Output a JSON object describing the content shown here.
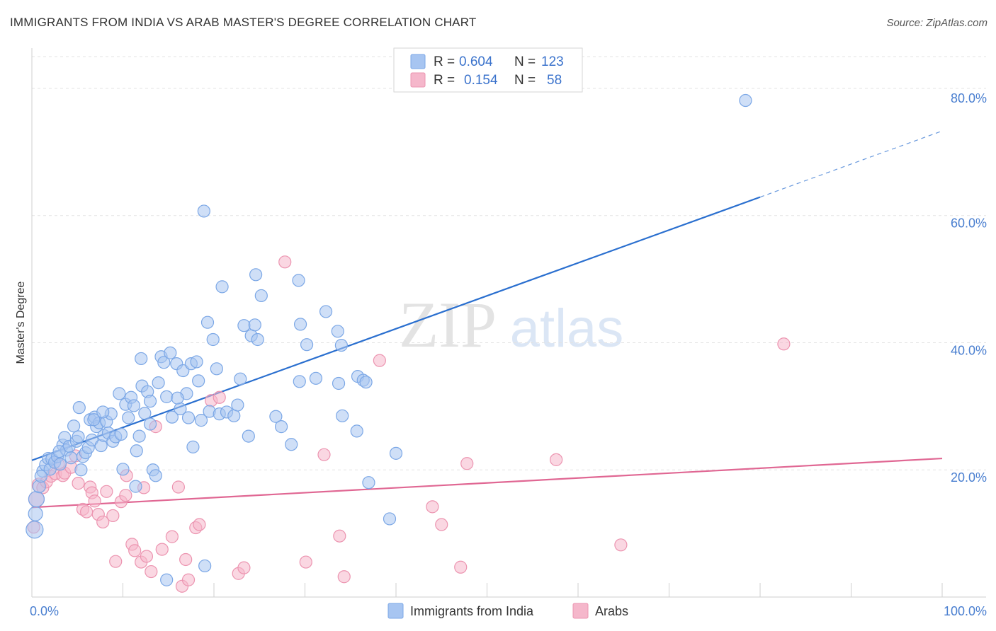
{
  "title": "IMMIGRANTS FROM INDIA VS ARAB MASTER'S DEGREE CORRELATION CHART",
  "source": "Source: ZipAtlas.com",
  "watermark": {
    "zip": "ZIP",
    "atlas": "atlas"
  },
  "chart_data": {
    "type": "scatter",
    "title": "IMMIGRANTS FROM INDIA VS ARAB MASTER'S DEGREE CORRELATION CHART",
    "xlabel": "",
    "ylabel": "Master's Degree",
    "xlim": [
      0,
      100
    ],
    "ylim": [
      0,
      85
    ],
    "grid": true,
    "y_ticks": [
      {
        "value": 80,
        "label": "80.0%"
      },
      {
        "value": 60,
        "label": "60.0%"
      },
      {
        "value": 40,
        "label": "40.0%"
      },
      {
        "value": 20,
        "label": "20.0%"
      }
    ],
    "x_ticks": [
      {
        "value": 0,
        "label": "0.0%"
      },
      {
        "value": 100,
        "label": "100.0%"
      }
    ],
    "x_minor_ticks": [
      10,
      20,
      30,
      40,
      50,
      60,
      70,
      80,
      90,
      100
    ],
    "legend": {
      "placement": "top-center",
      "entries": [
        {
          "r_label": "R =",
          "r": "0.604",
          "n_label": "N =",
          "n": "123",
          "color": "#a7c5f1"
        },
        {
          "r_label": "R =",
          "r": "0.154",
          "n_label": "N =",
          "n": "58",
          "color": "#f5b7cb"
        }
      ]
    },
    "series": [
      {
        "name": "Immigrants from India",
        "color": "#7ba7e6",
        "fill": "#a7c5f1",
        "line_color": "#2a6fcf",
        "trend": {
          "x0": 0,
          "y0": 21.5,
          "x1": 80,
          "y1": 62.9,
          "x_dash_end": 100,
          "y_dash_end": 73.3
        },
        "points": [
          [
            0.3,
            10.6
          ],
          [
            0.4,
            13.1
          ],
          [
            0.5,
            15.4
          ],
          [
            0.8,
            17.4
          ],
          [
            1.2,
            19.8
          ],
          [
            1.5,
            20.8
          ],
          [
            1.8,
            21.8
          ],
          [
            2.0,
            20.1
          ],
          [
            2.2,
            21.7
          ],
          [
            2.5,
            21.2
          ],
          [
            2.8,
            22.1
          ],
          [
            3.1,
            20.9
          ],
          [
            3.4,
            23.9
          ],
          [
            3.6,
            25.1
          ],
          [
            3.8,
            23.1
          ],
          [
            4.1,
            23.7
          ],
          [
            4.3,
            21.9
          ],
          [
            4.6,
            26.9
          ],
          [
            4.9,
            24.5
          ],
          [
            5.1,
            25.2
          ],
          [
            5.4,
            20.0
          ],
          [
            5.6,
            22.1
          ],
          [
            5.9,
            22.7
          ],
          [
            6.2,
            23.5
          ],
          [
            6.4,
            27.9
          ],
          [
            6.6,
            24.7
          ],
          [
            6.9,
            28.3
          ],
          [
            7.1,
            26.8
          ],
          [
            7.4,
            27.4
          ],
          [
            7.6,
            23.8
          ],
          [
            7.9,
            25.4
          ],
          [
            8.2,
            27.6
          ],
          [
            8.4,
            25.8
          ],
          [
            8.7,
            28.8
          ],
          [
            8.9,
            24.5
          ],
          [
            9.2,
            25.2
          ],
          [
            9.6,
            32.0
          ],
          [
            10.0,
            20.1
          ],
          [
            10.3,
            30.3
          ],
          [
            10.6,
            28.2
          ],
          [
            10.9,
            31.4
          ],
          [
            11.2,
            30.1
          ],
          [
            11.5,
            23.0
          ],
          [
            11.8,
            25.3
          ],
          [
            12.1,
            33.2
          ],
          [
            12.4,
            28.9
          ],
          [
            12.7,
            32.3
          ],
          [
            13.0,
            27.2
          ],
          [
            13.3,
            20.0
          ],
          [
            13.6,
            19.1
          ],
          [
            13.9,
            33.7
          ],
          [
            14.2,
            37.8
          ],
          [
            14.5,
            36.9
          ],
          [
            14.8,
            31.5
          ],
          [
            15.2,
            38.4
          ],
          [
            15.4,
            28.3
          ],
          [
            15.9,
            36.7
          ],
          [
            16.3,
            29.6
          ],
          [
            16.6,
            35.6
          ],
          [
            17.0,
            32.0
          ],
          [
            17.2,
            28.2
          ],
          [
            17.5,
            36.7
          ],
          [
            17.7,
            23.6
          ],
          [
            18.1,
            37.0
          ],
          [
            18.3,
            34.0
          ],
          [
            18.6,
            27.8
          ],
          [
            18.9,
            60.7
          ],
          [
            19.3,
            43.2
          ],
          [
            19.5,
            29.2
          ],
          [
            19.9,
            40.5
          ],
          [
            20.3,
            35.9
          ],
          [
            20.6,
            28.8
          ],
          [
            20.9,
            48.8
          ],
          [
            21.4,
            29.1
          ],
          [
            22.2,
            28.5
          ],
          [
            22.6,
            30.2
          ],
          [
            22.9,
            34.3
          ],
          [
            23.3,
            42.7
          ],
          [
            23.8,
            25.3
          ],
          [
            24.1,
            41.1
          ],
          [
            24.5,
            42.8
          ],
          [
            24.6,
            50.7
          ],
          [
            24.8,
            40.5
          ],
          [
            25.2,
            47.4
          ],
          [
            26.8,
            28.4
          ],
          [
            27.4,
            26.8
          ],
          [
            28.5,
            24.0
          ],
          [
            29.3,
            49.8
          ],
          [
            29.4,
            33.9
          ],
          [
            29.5,
            42.9
          ],
          [
            30.2,
            39.7
          ],
          [
            31.2,
            34.4
          ],
          [
            32.3,
            44.9
          ],
          [
            33.6,
            41.8
          ],
          [
            33.7,
            33.6
          ],
          [
            34.0,
            39.6
          ],
          [
            34.1,
            28.5
          ],
          [
            35.7,
            26.1
          ],
          [
            35.8,
            34.7
          ],
          [
            36.4,
            34.1
          ],
          [
            36.7,
            33.8
          ],
          [
            37.0,
            18.0
          ],
          [
            39.3,
            12.3
          ],
          [
            40.0,
            22.6
          ],
          [
            12.0,
            37.5
          ],
          [
            9.8,
            25.6
          ],
          [
            19.0,
            4.9
          ],
          [
            14.8,
            2.7
          ],
          [
            11.4,
            17.4
          ],
          [
            5.2,
            29.8
          ],
          [
            6.8,
            27.9
          ],
          [
            3.0,
            22.9
          ],
          [
            1.0,
            19.0
          ],
          [
            7.8,
            29.1
          ],
          [
            16.0,
            31.3
          ],
          [
            13.0,
            30.8
          ],
          [
            78.4,
            78.1
          ]
        ]
      },
      {
        "name": "Arabs",
        "color": "#ec94b0",
        "fill": "#f5b7cb",
        "line_color": "#e06793",
        "trend": {
          "x0": 0,
          "y0": 14.1,
          "x1": 100,
          "y1": 21.8
        },
        "points": [
          [
            0.2,
            11.0
          ],
          [
            0.5,
            15.4
          ],
          [
            0.8,
            17.6
          ],
          [
            1.2,
            17.2
          ],
          [
            1.6,
            18.1
          ],
          [
            2.1,
            19.0
          ],
          [
            2.6,
            19.4
          ],
          [
            2.9,
            20.9
          ],
          [
            3.4,
            19.1
          ],
          [
            3.6,
            19.5
          ],
          [
            4.3,
            20.4
          ],
          [
            4.8,
            22.2
          ],
          [
            5.1,
            17.9
          ],
          [
            5.6,
            13.8
          ],
          [
            6.0,
            13.4
          ],
          [
            6.4,
            17.3
          ],
          [
            6.6,
            16.4
          ],
          [
            6.9,
            15.1
          ],
          [
            7.3,
            13.0
          ],
          [
            7.8,
            11.8
          ],
          [
            8.2,
            16.6
          ],
          [
            8.9,
            12.8
          ],
          [
            9.2,
            5.6
          ],
          [
            9.8,
            15.0
          ],
          [
            10.3,
            16.0
          ],
          [
            10.4,
            19.1
          ],
          [
            11.0,
            8.3
          ],
          [
            11.3,
            7.3
          ],
          [
            12.0,
            5.5
          ],
          [
            12.3,
            17.2
          ],
          [
            12.6,
            6.4
          ],
          [
            13.1,
            4.0
          ],
          [
            13.6,
            26.8
          ],
          [
            14.3,
            7.5
          ],
          [
            15.4,
            9.5
          ],
          [
            16.1,
            17.3
          ],
          [
            16.5,
            1.7
          ],
          [
            16.9,
            5.9
          ],
          [
            17.2,
            2.7
          ],
          [
            18.0,
            10.9
          ],
          [
            18.4,
            11.4
          ],
          [
            19.7,
            30.9
          ],
          [
            20.6,
            31.4
          ],
          [
            22.7,
            3.7
          ],
          [
            23.3,
            4.6
          ],
          [
            27.8,
            52.7
          ],
          [
            30.1,
            5.5
          ],
          [
            32.1,
            22.4
          ],
          [
            33.8,
            9.6
          ],
          [
            34.3,
            3.2
          ],
          [
            38.2,
            37.2
          ],
          [
            44.0,
            14.2
          ],
          [
            45.0,
            11.4
          ],
          [
            47.1,
            4.7
          ],
          [
            47.8,
            21.0
          ],
          [
            57.6,
            21.6
          ],
          [
            64.7,
            8.2
          ],
          [
            82.6,
            39.8
          ]
        ]
      }
    ]
  },
  "bottom_legend": [
    {
      "label": "Immigrants from India",
      "color": "#a7c5f1"
    },
    {
      "label": "Arabs",
      "color": "#f5b7cb"
    }
  ]
}
